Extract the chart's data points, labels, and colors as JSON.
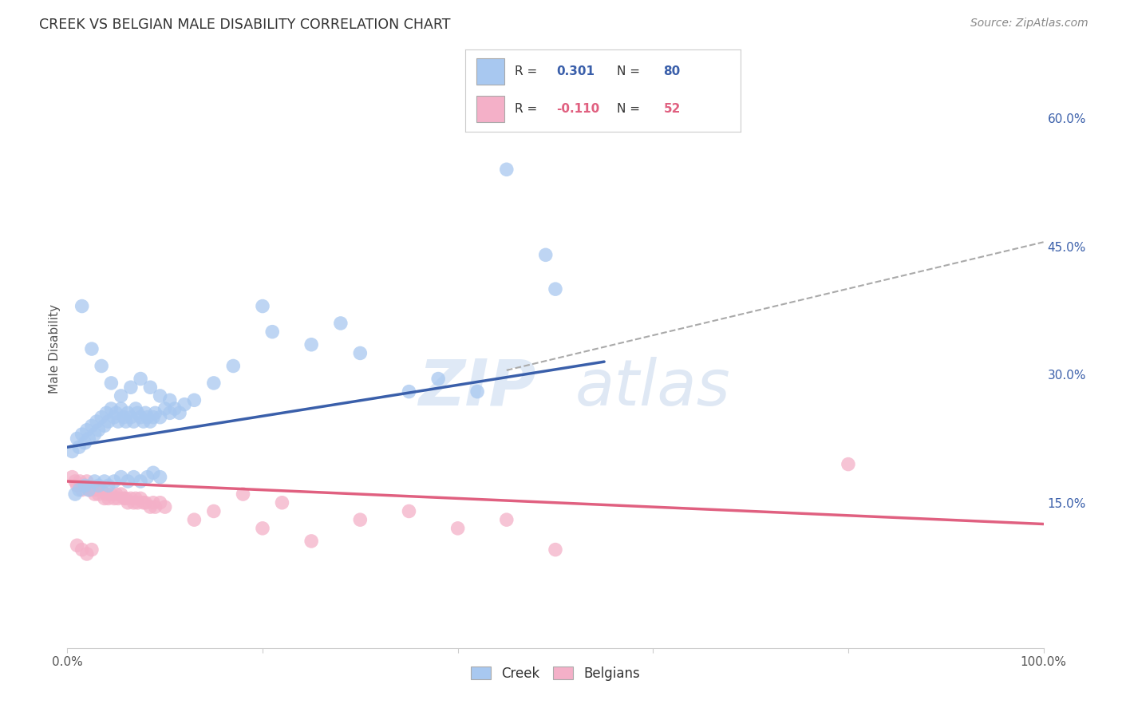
{
  "title": "CREEK VS BELGIAN MALE DISABILITY CORRELATION CHART",
  "source": "Source: ZipAtlas.com",
  "ylabel": "Male Disability",
  "x_min": 0.0,
  "x_max": 1.0,
  "y_min": -0.02,
  "y_max": 0.68,
  "y_tick_labels_right": [
    "15.0%",
    "30.0%",
    "45.0%",
    "60.0%"
  ],
  "y_tick_vals_right": [
    0.15,
    0.3,
    0.45,
    0.6
  ],
  "creek_color": "#a8c8f0",
  "belgians_color": "#f4b0c8",
  "creek_line_color": "#3a5faa",
  "belgians_line_color": "#e06080",
  "dashed_line_color": "#aaaaaa",
  "watermark_zip": "ZIP",
  "watermark_atlas": "atlas",
  "creek_R": 0.301,
  "creek_N": 80,
  "belgians_R": -0.11,
  "belgians_N": 52,
  "background_color": "#ffffff",
  "grid_color": "#dddddd",
  "creek_line_x0": 0.0,
  "creek_line_y0": 0.215,
  "creek_line_x1": 0.55,
  "creek_line_y1": 0.315,
  "dashed_line_x0": 0.45,
  "dashed_line_y0": 0.305,
  "dashed_line_x1": 1.0,
  "dashed_line_y1": 0.455,
  "belgians_line_x0": 0.0,
  "belgians_line_y0": 0.175,
  "belgians_line_x1": 1.0,
  "belgians_line_y1": 0.125
}
